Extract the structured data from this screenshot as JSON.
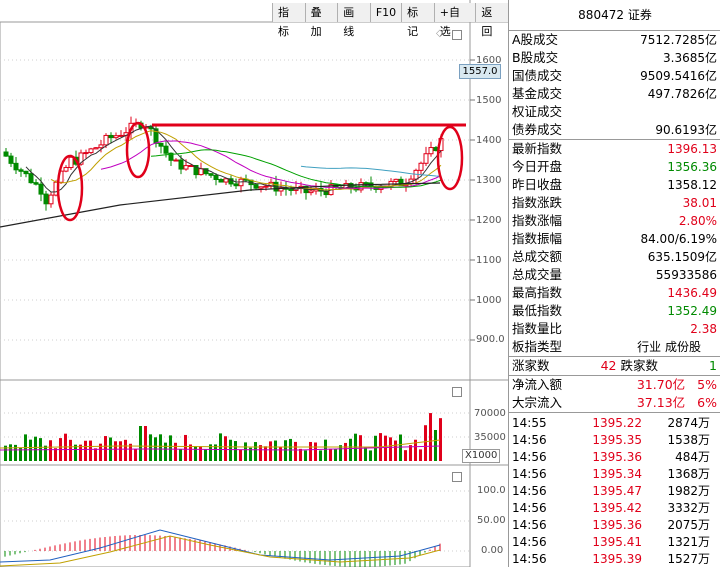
{
  "toolbar": [
    "指标",
    "叠加",
    "画线",
    "F10",
    "标记",
    "+自选",
    "返回"
  ],
  "price_tag": "1557.0",
  "price_axis": [
    "1600",
    "1500",
    "1400",
    "1300",
    "1200",
    "1100",
    "1000",
    "900.0"
  ],
  "volume_axis": [
    "70000",
    "35000"
  ],
  "volume_unit": "X1000",
  "macd_axis": [
    "100.0",
    "50.00",
    "0.00"
  ],
  "index_header": {
    "code": "880472",
    "name": "证券"
  },
  "market_rows": [
    {
      "label": "A股成交",
      "value": "7512.7285亿"
    },
    {
      "label": "B股成交",
      "value": "3.3685亿"
    },
    {
      "label": "国债成交",
      "value": "9509.5416亿"
    },
    {
      "label": "基金成交",
      "value": "497.7826亿"
    },
    {
      "label": "权证成交",
      "value": ""
    },
    {
      "label": "债券成交",
      "value": "90.6193亿"
    }
  ],
  "index_rows": [
    {
      "label": "最新指数",
      "value": "1396.13",
      "color": "red"
    },
    {
      "label": "今日开盘",
      "value": "1356.36",
      "color": "green"
    },
    {
      "label": "昨日收盘",
      "value": "1358.12",
      "color": "black"
    },
    {
      "label": "指数涨跌",
      "value": "38.01",
      "color": "red"
    },
    {
      "label": "指数涨幅",
      "value": "2.80%",
      "color": "red"
    },
    {
      "label": "指数振幅",
      "value": "84.00/6.19%",
      "color": "black"
    },
    {
      "label": "总成交额",
      "value": "635.1509亿",
      "color": "black"
    },
    {
      "label": "总成交量",
      "value": "55933586",
      "color": "black"
    },
    {
      "label": "最高指数",
      "value": "1436.49",
      "color": "red"
    },
    {
      "label": "最低指数",
      "value": "1352.49",
      "color": "green"
    },
    {
      "label": "指数量比",
      "value": "2.38",
      "color": "red"
    },
    {
      "label": "板指类型",
      "value": "行业 成份股",
      "color": "black"
    }
  ],
  "breadth": {
    "up_label": "涨家数",
    "up": "42",
    "down_label": "跌家数",
    "down": "1"
  },
  "flows": [
    {
      "label": "净流入额",
      "value": "31.70亿",
      "pct": "5%"
    },
    {
      "label": "大宗流入",
      "value": "37.13亿",
      "pct": "6%"
    }
  ],
  "ticks": [
    {
      "time": "14:55",
      "price": "1395.22",
      "vol": "2874万"
    },
    {
      "time": "14:56",
      "price": "1395.35",
      "vol": "1538万"
    },
    {
      "time": "14:56",
      "price": "1395.36",
      "vol": "484万"
    },
    {
      "time": "14:56",
      "price": "1395.34",
      "vol": "1368万"
    },
    {
      "time": "14:56",
      "price": "1395.47",
      "vol": "1982万"
    },
    {
      "time": "14:56",
      "price": "1395.42",
      "vol": "3332万"
    },
    {
      "time": "14:56",
      "price": "1395.36",
      "vol": "2075万"
    },
    {
      "time": "14:56",
      "price": "1395.41",
      "vol": "1321万"
    },
    {
      "time": "14:56",
      "price": "1395.39",
      "vol": "1527万"
    }
  ],
  "colors": {
    "up": "#e0001a",
    "down": "#008a00",
    "ma1": "#ffffff"
  }
}
